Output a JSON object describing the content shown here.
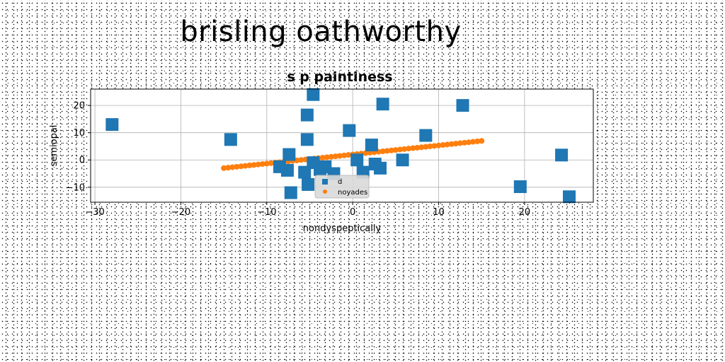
{
  "page_title": "brisling oathworthy",
  "colors": {
    "series_d": "#1f77b4",
    "series_noyades": "#ff7f0e",
    "grid": "#b0b0b0",
    "legend_bg": "#d9d9d9"
  },
  "chart_data": {
    "type": "scatter",
    "title": "s p paintiness",
    "xlabel": "nondyspeptically",
    "ylabel": "semiopal",
    "xlim": [
      -30.5,
      28
    ],
    "ylim": [
      -15.5,
      26
    ],
    "xticks": [
      -30,
      -20,
      -10,
      0,
      10,
      20
    ],
    "yticks": [
      -10,
      0,
      10,
      20
    ],
    "xtick_labels": [
      "−30",
      "−20",
      "−10",
      "0",
      "10",
      "20"
    ],
    "ytick_labels": [
      "−10",
      "0",
      "10",
      "20"
    ],
    "grid": true,
    "legend_position": "lower-center",
    "series": [
      {
        "name": "d",
        "marker": "square",
        "color": "#1f77b4",
        "points": [
          [
            -28,
            13
          ],
          [
            -14.2,
            7.5
          ],
          [
            -7.4,
            2
          ],
          [
            -8.5,
            -2.5
          ],
          [
            -7.6,
            -3.8
          ],
          [
            -7.2,
            -12
          ],
          [
            -5.3,
            16.5
          ],
          [
            -5.3,
            7.5
          ],
          [
            -4.6,
            24
          ],
          [
            -5.6,
            -4.5
          ],
          [
            -5.2,
            -9
          ],
          [
            -4.6,
            -1
          ],
          [
            -3.8,
            -3.5
          ],
          [
            -3.2,
            -2.5
          ],
          [
            -2.2,
            -5
          ],
          [
            -0.4,
            10.8
          ],
          [
            0.5,
            0
          ],
          [
            1.2,
            -4.5
          ],
          [
            2.2,
            5.5
          ],
          [
            2.6,
            -1.5
          ],
          [
            3.2,
            -3
          ],
          [
            3.5,
            20.5
          ],
          [
            5.8,
            0
          ],
          [
            8.5,
            9
          ],
          [
            12.8,
            20
          ],
          [
            19.5,
            -9.8
          ],
          [
            24.3,
            1.8
          ],
          [
            25.2,
            -13.5
          ]
        ]
      },
      {
        "name": "noyades",
        "marker": "circle",
        "color": "#ff7f0e",
        "line": {
          "x_from": -15,
          "x_to": 15,
          "count": 61,
          "intercept": 2,
          "slope": 0.333
        }
      }
    ]
  }
}
